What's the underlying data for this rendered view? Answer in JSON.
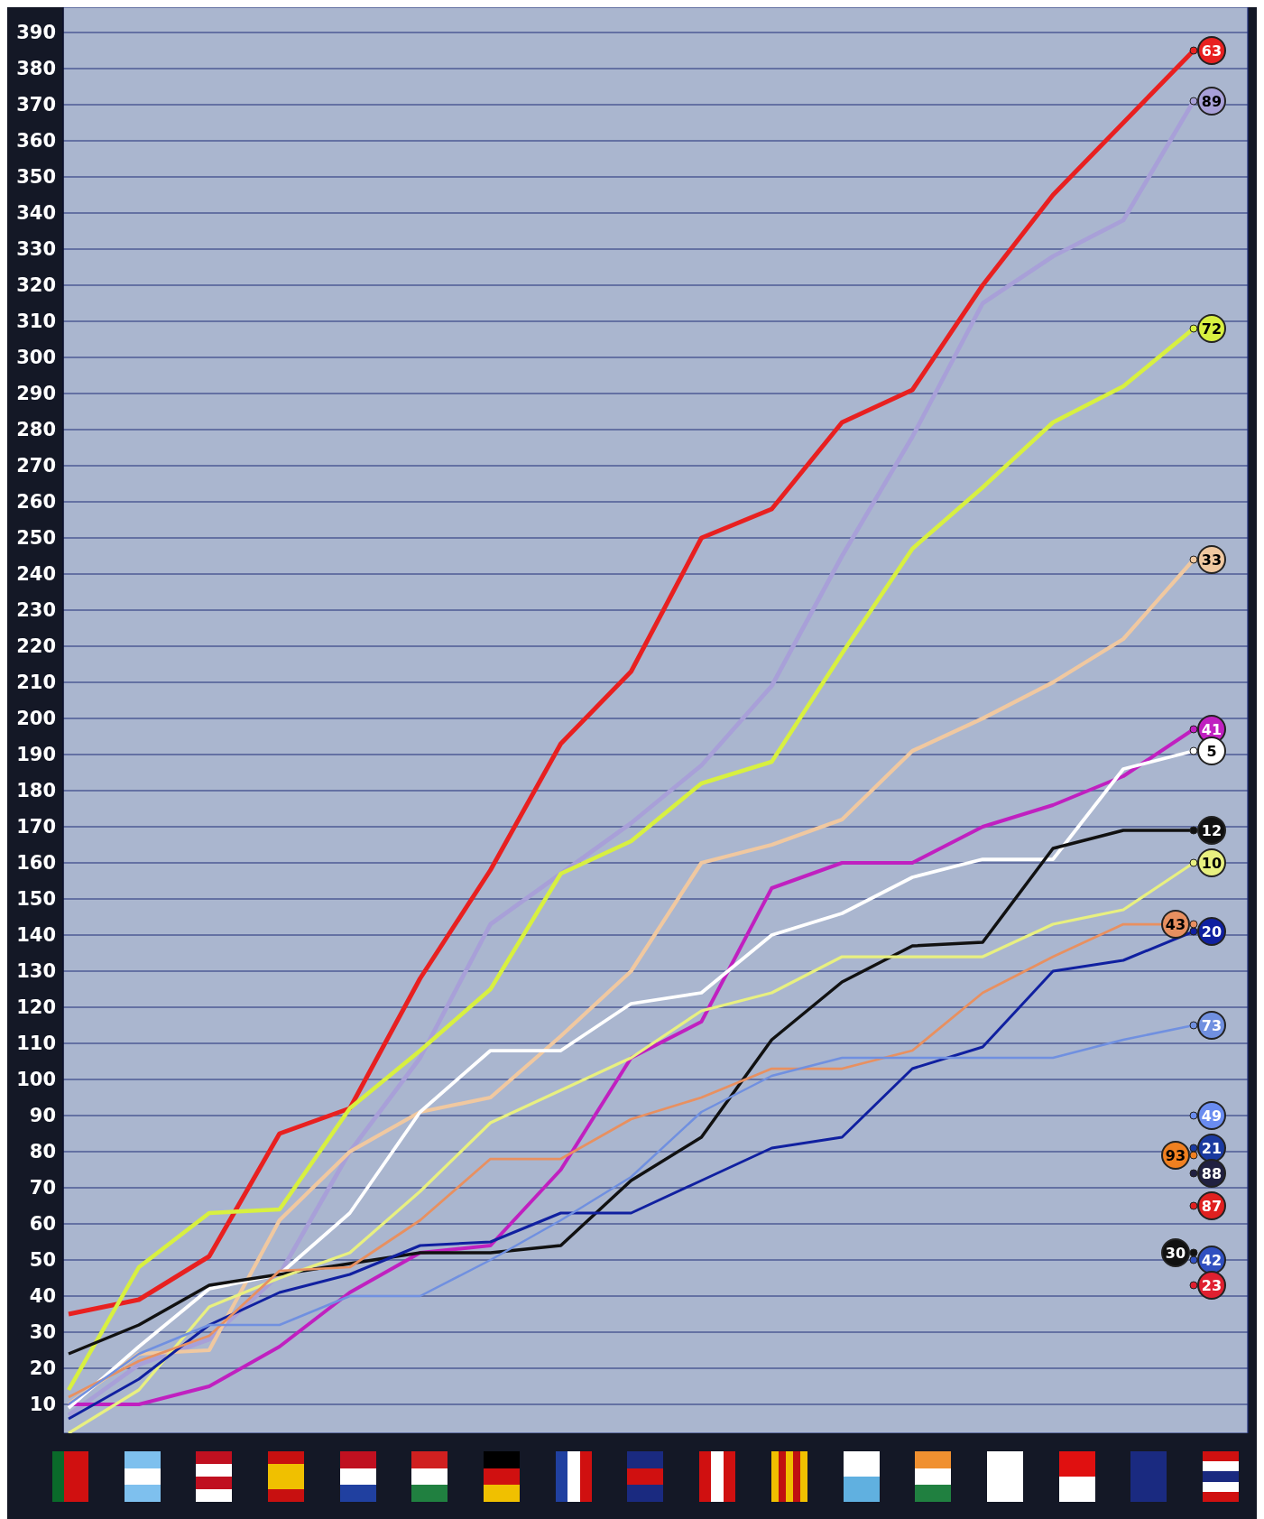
{
  "chart_data": {
    "type": "line",
    "categories": [
      null,
      null,
      null,
      null,
      null,
      null,
      null,
      null,
      null,
      null,
      null,
      null,
      null,
      null,
      null,
      null,
      null
    ],
    "ylim": [
      2,
      397
    ],
    "yticks": [
      10,
      20,
      30,
      40,
      50,
      60,
      70,
      80,
      90,
      100,
      110,
      120,
      130,
      140,
      150,
      160,
      170,
      180,
      190,
      200,
      210,
      220,
      230,
      240,
      250,
      260,
      270,
      280,
      290,
      300,
      310,
      320,
      330,
      340,
      350,
      360,
      370,
      380,
      390
    ],
    "grid": true,
    "legend": "right",
    "series": [
      {
        "name": "63",
        "color": "#e82020",
        "values": [
          35,
          39,
          51,
          85,
          92,
          128,
          158,
          193,
          213,
          250,
          258,
          282,
          291,
          320,
          345,
          365,
          385
        ]
      },
      {
        "name": "89",
        "color": "#a8a0d8",
        "values": [
          7,
          21,
          28,
          46,
          80,
          106,
          143,
          157,
          171,
          187,
          209,
          245,
          278,
          315,
          328,
          338,
          371
        ]
      },
      {
        "name": "72",
        "color": "#d8f040",
        "values": [
          14,
          48,
          63,
          64,
          92,
          108,
          125,
          157,
          166,
          182,
          188,
          218,
          247,
          264,
          282,
          292,
          308
        ]
      },
      {
        "name": "33",
        "color": "#f0c8a0",
        "values": [
          10,
          24,
          25,
          61,
          80,
          91,
          95,
          112,
          130,
          160,
          165,
          172,
          191,
          200,
          210,
          222,
          244
        ]
      },
      {
        "name": "41",
        "color": "#c020c0",
        "values": [
          10,
          10,
          15,
          26,
          41,
          52,
          54,
          75,
          106,
          116,
          153,
          160,
          160,
          170,
          176,
          184,
          197
        ]
      },
      {
        "name": "5",
        "color": "#ffffff",
        "values": [
          9,
          26,
          42,
          46,
          63,
          91,
          108,
          108,
          121,
          124,
          140,
          146,
          156,
          161,
          161,
          186,
          191
        ]
      },
      {
        "name": "12",
        "color": "#111111",
        "values": [
          24,
          32,
          43,
          46,
          49,
          52,
          52,
          54,
          72,
          84,
          111,
          127,
          137,
          138,
          164,
          169,
          169
        ]
      },
      {
        "name": "10",
        "color": "#e8f080",
        "values": [
          2,
          14,
          37,
          45,
          52,
          69,
          88,
          97,
          106,
          119,
          124,
          134,
          134,
          134,
          143,
          147,
          160
        ]
      },
      {
        "name": "20",
        "color": "#1020a0",
        "values": [
          6,
          17,
          32,
          41,
          46,
          54,
          55,
          63,
          63,
          72,
          81,
          84,
          103,
          109,
          130,
          133,
          141
        ]
      },
      {
        "name": "43",
        "color": "#e89060",
        "values": [
          12,
          22,
          29,
          47,
          48,
          61,
          78,
          78,
          89,
          95,
          103,
          103,
          108,
          124,
          134,
          143,
          143
        ]
      },
      {
        "name": "73",
        "color": "#7090e0",
        "values": [
          10,
          24,
          32,
          32,
          40,
          40,
          50,
          61,
          73,
          91,
          101,
          106,
          106,
          106,
          106,
          111,
          115
        ]
      },
      {
        "name": "49",
        "type": "scatter",
        "color": "#6a8cf0",
        "values": [
          null,
          null,
          null,
          null,
          null,
          null,
          null,
          null,
          null,
          null,
          null,
          null,
          null,
          null,
          null,
          null,
          90
        ]
      },
      {
        "name": "21",
        "type": "scatter",
        "color": "#1a3aa0",
        "values": [
          null,
          null,
          null,
          null,
          null,
          null,
          null,
          null,
          null,
          null,
          null,
          null,
          null,
          null,
          null,
          null,
          81
        ]
      },
      {
        "name": "93",
        "type": "scatter",
        "color": "#f08020",
        "values": [
          null,
          null,
          null,
          null,
          null,
          null,
          null,
          null,
          null,
          null,
          null,
          null,
          null,
          null,
          null,
          null,
          79
        ]
      },
      {
        "name": "88",
        "type": "scatter",
        "color": "#202040",
        "values": [
          null,
          null,
          null,
          null,
          null,
          null,
          null,
          null,
          null,
          null,
          null,
          null,
          null,
          null,
          null,
          null,
          74
        ]
      },
      {
        "name": "87",
        "type": "scatter",
        "color": "#e02020",
        "values": [
          null,
          null,
          null,
          null,
          null,
          null,
          null,
          null,
          null,
          null,
          null,
          null,
          null,
          null,
          null,
          null,
          65
        ]
      },
      {
        "name": "42",
        "type": "scatter",
        "color": "#3050c0",
        "values": [
          null,
          null,
          null,
          null,
          null,
          null,
          null,
          null,
          null,
          null,
          null,
          null,
          null,
          null,
          null,
          null,
          50
        ]
      },
      {
        "name": "30",
        "type": "scatter",
        "color": "#111111",
        "values": [
          null,
          null,
          null,
          null,
          null,
          null,
          null,
          null,
          null,
          null,
          null,
          null,
          null,
          null,
          null,
          null,
          52
        ]
      },
      {
        "name": "23",
        "type": "scatter",
        "color": "#e02030",
        "values": [
          null,
          null,
          null,
          null,
          null,
          null,
          null,
          null,
          null,
          null,
          null,
          null,
          null,
          null,
          null,
          null,
          43
        ]
      }
    ]
  }
}
